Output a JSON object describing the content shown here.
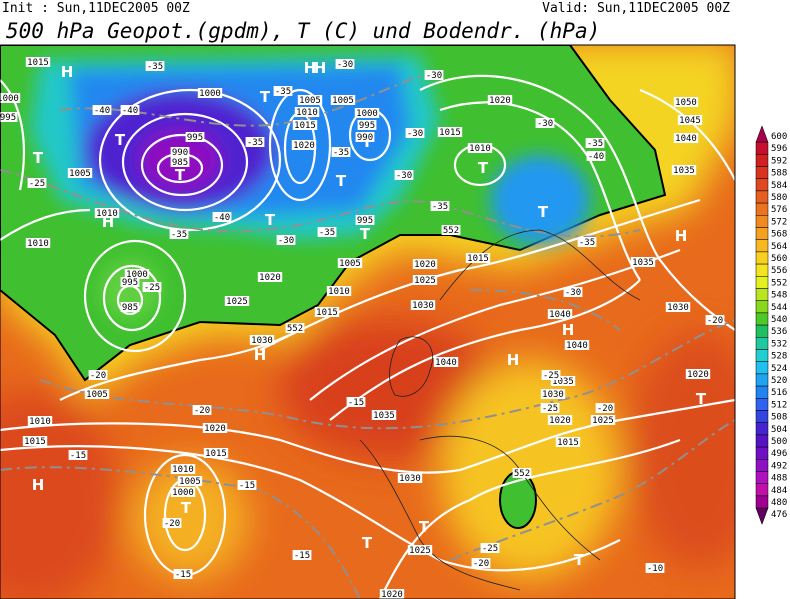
{
  "header": {
    "init": "Init : Sun,11DEC2005 00Z",
    "valid": "Valid: Sun,11DEC2005 00Z",
    "title": "500 hPa Geopot.(gpdm), T (C) und Bodendr. (hPa)"
  },
  "colorbar": {
    "levels": [
      600,
      596,
      592,
      588,
      584,
      580,
      576,
      572,
      568,
      564,
      560,
      556,
      552,
      548,
      544,
      540,
      536,
      532,
      528,
      524,
      520,
      516,
      512,
      508,
      504,
      500,
      496,
      492,
      488,
      484,
      480,
      476
    ],
    "colors": [
      "#a8004c",
      "#c4102c",
      "#d02020",
      "#d83420",
      "#e04820",
      "#e65e20",
      "#ec7420",
      "#f08a20",
      "#f4a020",
      "#f8b820",
      "#f8d020",
      "#f4e420",
      "#e4f020",
      "#b8e420",
      "#88d820",
      "#50c828",
      "#20c060",
      "#20c8a0",
      "#20d0d0",
      "#20c0f0",
      "#20a4f0",
      "#2084f0",
      "#3064f0",
      "#3444e0",
      "#4424d0",
      "#5414c4",
      "#7010c4",
      "#9010c4",
      "#b010c0",
      "#c010a8",
      "#a00090",
      "#600060"
    ]
  },
  "map": {
    "highs_lows": [
      "H",
      "H",
      "T",
      "T",
      "T",
      "T",
      "H",
      "T",
      "T",
      "T",
      "T",
      "T",
      "T",
      "H",
      "H",
      "H",
      "H",
      "T",
      "H",
      "T",
      "T",
      "T",
      "T",
      "H"
    ],
    "isobar_labels": [
      "1015",
      "1005",
      "1000",
      "995",
      "990",
      "985",
      "1020",
      "1015",
      "1010",
      "1050",
      "1045",
      "1040",
      "1035",
      "1035",
      "1030",
      "1020",
      "1040",
      "1035",
      "1030",
      "1025",
      "1020",
      "1015",
      "1040",
      "1040",
      "1035",
      "1030",
      "1025",
      "1020",
      "1015",
      "1030",
      "1025",
      "1020",
      "1010",
      "1015",
      "1020",
      "1015",
      "1010",
      "1005",
      "1000",
      "1025",
      "1030",
      "1020",
      "1015",
      "1010",
      "1005",
      "1000",
      "995",
      "985",
      "1010",
      "1005",
      "1010",
      "1005",
      "1000",
      "995",
      "1005",
      "1010",
      "1015",
      "1020",
      "1000",
      "995",
      "990",
      "995"
    ],
    "temperature_labels": [
      "-30",
      "-35",
      "-40",
      "-40",
      "-35",
      "-35",
      "-35",
      "-30",
      "-30",
      "-30",
      "-30",
      "-35",
      "-40",
      "-35",
      "-35",
      "-30",
      "-35",
      "-35",
      "-40",
      "-25",
      "-25",
      "-20",
      "-30",
      "-25",
      "-20",
      "-25",
      "-20",
      "-15",
      "-20",
      "-15",
      "-15",
      "-20",
      "-15",
      "-15",
      "-25",
      "-20",
      "-10",
      "552",
      "552",
      "552"
    ]
  }
}
